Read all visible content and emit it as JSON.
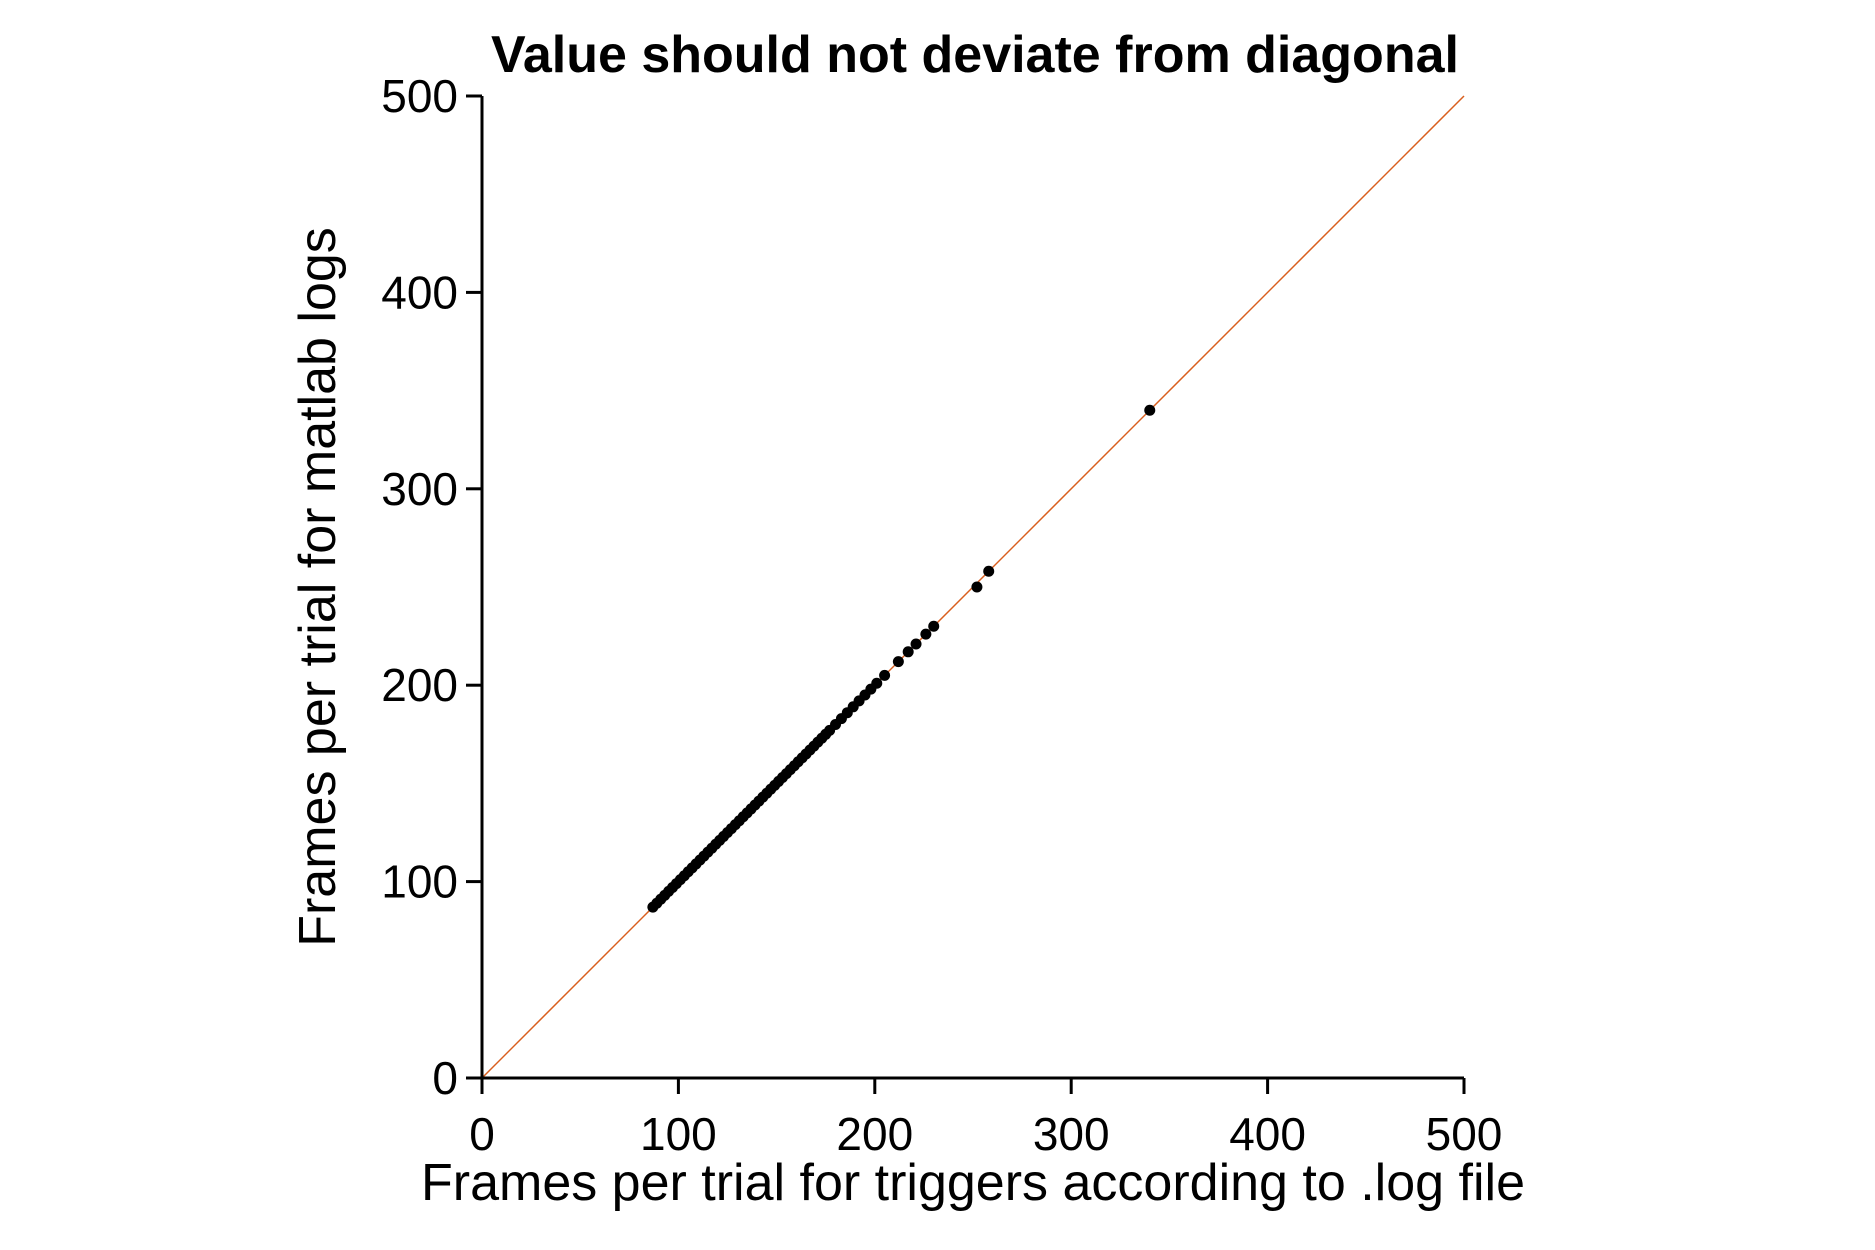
{
  "chart_data": {
    "type": "scatter",
    "title": "Value should not deviate from diagonal",
    "xlabel": "Frames per trial for triggers according to .log file",
    "ylabel": "Frames per trial for matlab logs",
    "xlim": [
      0,
      500
    ],
    "ylim": [
      0,
      500
    ],
    "x_ticks": [
      0,
      100,
      200,
      300,
      400,
      500
    ],
    "y_ticks": [
      0,
      100,
      200,
      300,
      400,
      500
    ],
    "x_tick_labels": [
      "0",
      "100",
      "200",
      "300",
      "400",
      "500"
    ],
    "y_tick_labels": [
      "0",
      "100",
      "200",
      "300",
      "400",
      "500"
    ],
    "grid": false,
    "reference_line": {
      "from": [
        0,
        0
      ],
      "to": [
        500,
        500
      ],
      "color": "#d95f1e"
    },
    "point_color": "#000000",
    "series": [
      {
        "x": [
          87,
          89,
          91,
          93,
          95,
          97,
          99,
          101,
          103,
          105,
          107,
          109,
          111,
          113,
          115,
          117,
          119,
          121,
          123,
          125,
          127,
          129,
          131,
          133,
          135,
          137,
          139,
          141,
          143,
          145,
          147,
          149,
          151,
          153,
          155,
          157,
          159,
          161,
          163,
          165,
          167,
          169,
          171,
          173,
          175,
          177,
          180,
          183,
          186,
          189,
          192,
          195,
          198,
          201,
          205,
          212,
          217,
          221,
          226,
          230,
          252,
          258,
          340
        ],
        "y": [
          87,
          89,
          91,
          93,
          95,
          97,
          99,
          101,
          103,
          105,
          107,
          109,
          111,
          113,
          115,
          117,
          119,
          121,
          123,
          125,
          127,
          129,
          131,
          133,
          135,
          137,
          139,
          141,
          143,
          145,
          147,
          149,
          151,
          153,
          155,
          157,
          159,
          161,
          163,
          165,
          167,
          169,
          171,
          173,
          175,
          177,
          180,
          183,
          186,
          189,
          192,
          195,
          198,
          201,
          205,
          212,
          217,
          221,
          226,
          230,
          250,
          258,
          340
        ]
      }
    ]
  }
}
